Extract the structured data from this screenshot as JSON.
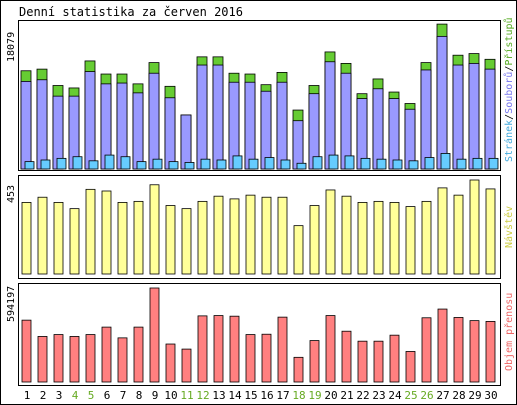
{
  "title": "Denní statistika za červen 2016",
  "colors": {
    "hits": "#66cc33",
    "files": "#9999ff",
    "pages": "#66ccff",
    "visits": "#ffff99",
    "volume": "#ff8080",
    "weekend_label": "#66aa22",
    "legend_hits": "#55aa22",
    "legend_files": "#7777ee",
    "legend_pages": "#44aadd",
    "legend_visits": "#cccc44",
    "legend_volume": "#ee6666"
  },
  "chart_data": [
    {
      "type": "bar",
      "title": "Denní statistika za červen 2016",
      "x": [
        1,
        2,
        3,
        4,
        5,
        6,
        7,
        8,
        9,
        10,
        11,
        12,
        13,
        14,
        15,
        16,
        17,
        18,
        19,
        20,
        21,
        22,
        23,
        24,
        25,
        26,
        27,
        28,
        29,
        30
      ],
      "weekend_days": [
        4,
        5,
        11,
        12,
        18,
        19,
        25,
        26
      ],
      "ymax_label": "18079",
      "ylim": [
        0,
        18079
      ],
      "legend": {
        "hits": "Přístupů",
        "sep1": "/",
        "files": "Souborů",
        "sep2": "/",
        "pages": "Stránek"
      },
      "series": [
        {
          "name": "Přístupů",
          "key": "hits",
          "values": [
            12000,
            12200,
            10200,
            9900,
            13200,
            11600,
            11600,
            10400,
            13000,
            10100,
            6600,
            13700,
            13700,
            11700,
            11600,
            10300,
            11800,
            7200,
            10200,
            14300,
            12900,
            9200,
            11000,
            9400,
            8000,
            13000,
            17700,
            13900,
            14100,
            13400
          ]
        },
        {
          "name": "Souborů",
          "key": "files",
          "values": [
            10700,
            10900,
            8900,
            8900,
            11900,
            10400,
            10500,
            9300,
            11700,
            8700,
            6600,
            12700,
            12700,
            10600,
            10600,
            9500,
            10600,
            5900,
            9200,
            13100,
            11700,
            8600,
            9800,
            8600,
            7300,
            12100,
            16200,
            12700,
            12900,
            12200
          ]
        },
        {
          "name": "Stránek",
          "key": "pages",
          "values": [
            900,
            1100,
            1300,
            1500,
            1000,
            1700,
            1500,
            900,
            1200,
            900,
            800,
            1200,
            1100,
            1600,
            1200,
            1400,
            1100,
            700,
            1500,
            1700,
            1600,
            1300,
            1200,
            1100,
            1000,
            1400,
            1900,
            1200,
            1300,
            1300
          ]
        }
      ]
    },
    {
      "type": "bar",
      "x": [
        1,
        2,
        3,
        4,
        5,
        6,
        7,
        8,
        9,
        10,
        11,
        12,
        13,
        14,
        15,
        16,
        17,
        18,
        19,
        20,
        21,
        22,
        23,
        24,
        25,
        26,
        27,
        28,
        29,
        30
      ],
      "ymax_label": "453",
      "ylim": [
        0,
        453
      ],
      "legend": {
        "visits": "Návštěv"
      },
      "series": [
        {
          "name": "Návštěv",
          "key": "visits",
          "values": [
            345,
            370,
            345,
            315,
            408,
            400,
            345,
            350,
            430,
            330,
            315,
            350,
            375,
            362,
            380,
            370,
            370,
            233,
            330,
            405,
            375,
            345,
            350,
            345,
            325,
            350,
            415,
            380,
            453,
            410
          ]
        }
      ]
    },
    {
      "type": "bar",
      "x": [
        1,
        2,
        3,
        4,
        5,
        6,
        7,
        8,
        9,
        10,
        11,
        12,
        13,
        14,
        15,
        16,
        17,
        18,
        19,
        20,
        21,
        22,
        23,
        24,
        25,
        26,
        27,
        28,
        29,
        30
      ],
      "ymax_label": "594197",
      "ylim": [
        0,
        594197
      ],
      "legend": {
        "volume": "Objem přenosu"
      },
      "series": [
        {
          "name": "Objem přenosu",
          "key": "volume",
          "values": [
            391000,
            288000,
            300000,
            288000,
            300000,
            347000,
            279000,
            347000,
            594197,
            240000,
            208000,
            418000,
            420000,
            416000,
            300000,
            302000,
            410000,
            156000,
            262000,
            420000,
            321000,
            258000,
            258000,
            296000,
            193000,
            406000,
            461000,
            408000,
            388000,
            383000
          ]
        }
      ]
    }
  ]
}
